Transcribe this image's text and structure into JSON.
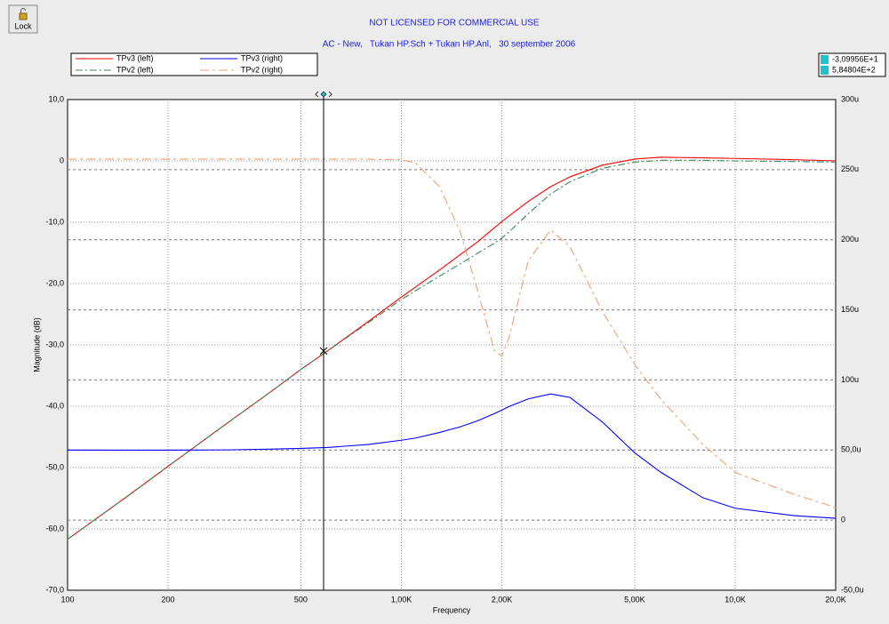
{
  "toolbar": {
    "lock": "Lock"
  },
  "chart_data": {
    "type": "line",
    "title": "NOT LICENSED FOR COMMERCIAL USE",
    "subtitle": "AC - New,   Tukan HP.Sch + Tukan HP.Anl,   30 september 2006",
    "x_label": "Frequency",
    "y_label": "Magnitude (dB)",
    "log_x": true,
    "grid": true,
    "legend": "top-left",
    "x": [
      100,
      150,
      200,
      300,
      400,
      500,
      600,
      800,
      1000,
      1100,
      1300,
      1500,
      1700,
      1900,
      2000,
      2100,
      2400,
      2800,
      3200,
      4000,
      5000,
      6000,
      8000,
      10000,
      15000,
      20000
    ],
    "xlim": [
      100,
      20000
    ],
    "xticks": [
      100,
      200,
      500,
      {
        "value": 1000,
        "label": "1,00K"
      },
      {
        "value": 2000,
        "label": "2,00K"
      },
      {
        "value": 5000,
        "label": "5,00K"
      },
      {
        "value": 10000,
        "label": "10,0K"
      },
      {
        "value": 20000,
        "label": "20,0K"
      }
    ],
    "ylim": [
      -70,
      10
    ],
    "yticks": [
      {
        "value": -70,
        "label": "-70,0"
      },
      {
        "value": -60,
        "label": "-60,0"
      },
      {
        "value": -50,
        "label": "-50,0"
      },
      {
        "value": -40,
        "label": "-40,0"
      },
      {
        "value": -30,
        "label": "-30,0"
      },
      {
        "value": -20,
        "label": "-20,0"
      },
      {
        "value": -10,
        "label": "-10,0"
      },
      0,
      {
        "value": 10,
        "label": "10,0"
      }
    ],
    "y2lim": [
      -50,
      300
    ],
    "y2ticks": [
      {
        "value": -50,
        "label": "-50,0u"
      },
      0,
      {
        "value": 50,
        "label": "50,0u"
      },
      {
        "value": 100,
        "label": "100u"
      },
      {
        "value": 150,
        "label": "150u"
      },
      {
        "value": 200,
        "label": "200u"
      },
      {
        "value": 250,
        "label": "250u"
      },
      {
        "value": 300,
        "label": "300u"
      }
    ],
    "series": [
      {
        "name": "TPv3 (left)",
        "color": "#ff0000",
        "dash": "none",
        "values": [
          -61.7,
          -54.8,
          -49.8,
          -42.8,
          -37.9,
          -34.0,
          -31.0,
          -26.1,
          -22.2,
          -20.6,
          -17.8,
          -15.3,
          -13.1,
          -10.9,
          -9.9,
          -9.0,
          -6.6,
          -4.2,
          -2.6,
          -0.7,
          0.3,
          0.6,
          0.5,
          0.4,
          0.2,
          0
        ]
      },
      {
        "name": "TPv2 (left)",
        "color": "#3a8a5a",
        "dash": "8,3,2,3",
        "values": [
          -61.7,
          -54.8,
          -49.8,
          -42.8,
          -37.9,
          -34.0,
          -31.0,
          -26.3,
          -22.6,
          -21.2,
          -18.8,
          -16.8,
          -15.0,
          -13.4,
          -12.6,
          -11.6,
          -8.6,
          -5.4,
          -3.4,
          -1.2,
          -0.2,
          0.1,
          0.1,
          0,
          -0.1,
          -0.2
        ]
      },
      {
        "name": "TPv3 (right)",
        "color": "#0000ff",
        "dash": "none",
        "axis": "y2",
        "values": [
          50,
          49.9,
          49.9,
          50.1,
          50.6,
          51.2,
          51.8,
          54,
          57,
          58.5,
          62.5,
          66.5,
          71,
          76,
          78.5,
          81,
          86.5,
          90,
          87.5,
          70,
          48,
          34,
          16,
          8.5,
          3.2,
          1.3
        ]
      },
      {
        "name": "TPv2 (right)",
        "color": "#f0a070",
        "dash": "10,4,3,4",
        "axis": "y2",
        "values": [
          257.5,
          257.5,
          257.5,
          257.5,
          257.5,
          257.5,
          257.5,
          257.5,
          257,
          255,
          238,
          206,
          162,
          121,
          117,
          130,
          185,
          207,
          195,
          149,
          111,
          86,
          54,
          34,
          18.5,
          9
        ]
      }
    ],
    "cursor": {
      "x": {
        "value": 584.804,
        "label": "5,84804E+2"
      },
      "y": {
        "value": -30.9956,
        "label": "-3,09956E+1"
      }
    }
  }
}
